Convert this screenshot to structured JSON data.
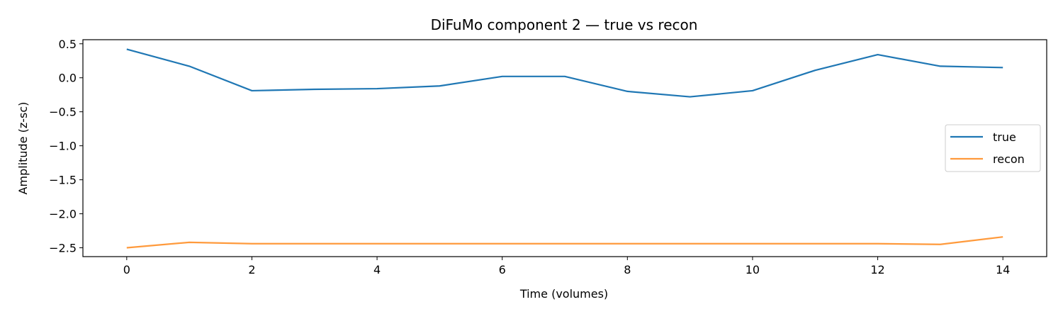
{
  "chart_data": {
    "type": "line",
    "title": "DiFuMo component 2 — true vs recon",
    "xlabel": "Time (volumes)",
    "ylabel": "Amplitude (z-sc)",
    "xlim": [
      -0.7,
      14.7
    ],
    "ylim": [
      -2.63,
      0.56
    ],
    "xticks": [
      0,
      2,
      4,
      6,
      8,
      10,
      12,
      14
    ],
    "xtick_labels": [
      "0",
      "2",
      "4",
      "6",
      "8",
      "10",
      "12",
      "14"
    ],
    "yticks": [
      0.5,
      0.0,
      -0.5,
      -1.0,
      -1.5,
      -2.0,
      -2.5
    ],
    "ytick_labels": [
      "0.5",
      "0.0",
      "−0.5",
      "−1.0",
      "−1.5",
      "−2.0",
      "−2.5"
    ],
    "grid": false,
    "legend_position": "center-right",
    "x": [
      0,
      1,
      2,
      3,
      4,
      5,
      6,
      7,
      8,
      9,
      10,
      11,
      12,
      13,
      14
    ],
    "series": [
      {
        "name": "true",
        "color": "#1f77b4",
        "values": [
          0.42,
          0.17,
          -0.19,
          -0.17,
          -0.16,
          -0.12,
          0.02,
          0.02,
          -0.2,
          -0.28,
          -0.19,
          0.11,
          0.34,
          0.17,
          0.15
        ]
      },
      {
        "name": "recon",
        "color": "#ff9a3c",
        "values": [
          -2.5,
          -2.42,
          -2.44,
          -2.44,
          -2.44,
          -2.44,
          -2.44,
          -2.44,
          -2.44,
          -2.44,
          -2.44,
          -2.44,
          -2.44,
          -2.45,
          -2.34
        ]
      }
    ]
  }
}
